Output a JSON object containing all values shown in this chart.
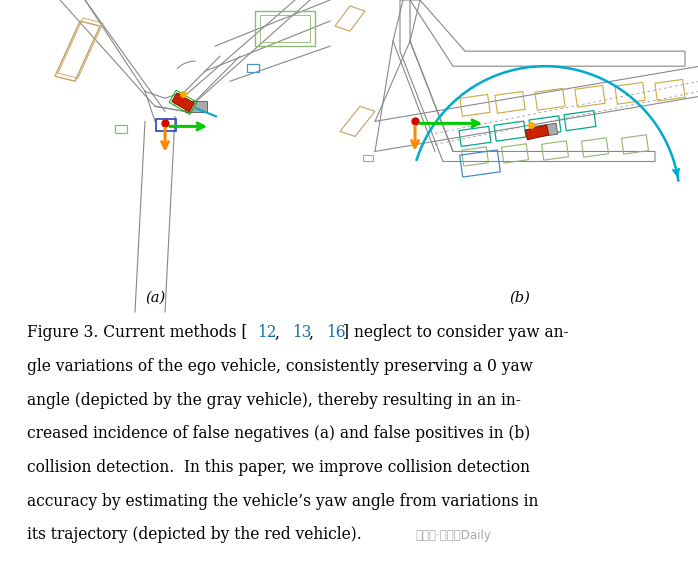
{
  "background_color": "#ffffff",
  "fig_width": 6.98,
  "fig_height": 5.66,
  "label_a": "(a)",
  "label_b": "(b)",
  "label_color": "#000000",
  "label_fontsize": 10.5,
  "caption_fontsize": 11.2,
  "road_color": "#888888",
  "road_lw": 0.8,
  "caption_lines": [
    "Figure 3. Current methods [12, 13, 16] neglect to consider yaw an-",
    "gle variations of the ego vehicle, consistently preserving a 0 yaw",
    "angle (depicted by the gray vehicle), thereby resulting in an in-",
    "creased incidence of false negatives (a) and false positives in (b)",
    "collision detection.  In this paper, we improve collision detection",
    "accuracy by estimating the vehicle’s yaw angle from variations in",
    "its trajectory (depicted by the red vehicle)."
  ],
  "line1_parts": [
    [
      "Figure 3. Current methods [",
      "#000000"
    ],
    [
      "12",
      "#1a6faf"
    ],
    [
      ", ",
      "#000000"
    ],
    [
      "13",
      "#1a6faf"
    ],
    [
      ", ",
      "#000000"
    ],
    [
      "16",
      "#1a6faf"
    ],
    [
      "] neglect to consider yaw an-",
      "#000000"
    ]
  ],
  "watermark": "公众号·自动驾Daily",
  "watermark_color": "#aaaaaa"
}
